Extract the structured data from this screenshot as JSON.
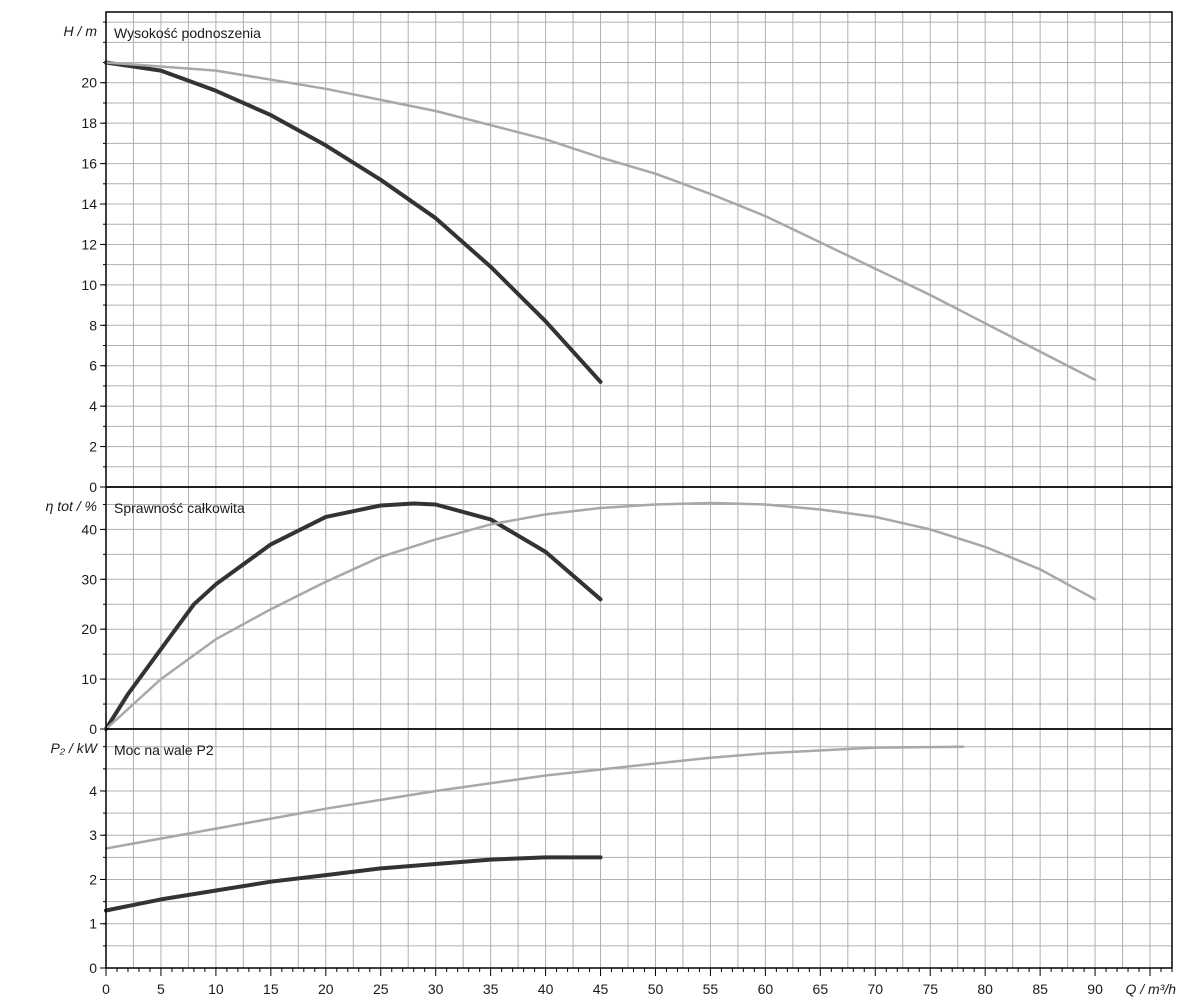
{
  "chart_data": {
    "type": "line",
    "x": {
      "label": "Q / m³/h",
      "range": [
        0,
        97
      ],
      "ticks": [
        0,
        5,
        10,
        15,
        20,
        25,
        30,
        35,
        40,
        45,
        50,
        55,
        60,
        65,
        70,
        75,
        80,
        85,
        90
      ],
      "grid": true
    },
    "colors": {
      "dark": "#333333",
      "light": "#a8a8a8",
      "grid": "#b0b0b0",
      "frame": "#000000"
    },
    "panels": [
      {
        "id": "head",
        "title": "Wysokość podnoszenia",
        "ylabel": "H / m",
        "yrange": [
          0,
          23.5
        ],
        "yticks": [
          0,
          2,
          4,
          6,
          8,
          10,
          12,
          14,
          16,
          18,
          20
        ],
        "series": [
          {
            "style": "dark",
            "points": [
              [
                0,
                21.0
              ],
              [
                5,
                20.6
              ],
              [
                10,
                19.6
              ],
              [
                15,
                18.4
              ],
              [
                20,
                16.9
              ],
              [
                25,
                15.2
              ],
              [
                30,
                13.3
              ],
              [
                35,
                10.9
              ],
              [
                40,
                8.2
              ],
              [
                45,
                5.2
              ]
            ]
          },
          {
            "style": "light",
            "points": [
              [
                0,
                21.0
              ],
              [
                10,
                20.6
              ],
              [
                20,
                19.7
              ],
              [
                30,
                18.6
              ],
              [
                40,
                17.2
              ],
              [
                45,
                16.3
              ],
              [
                50,
                15.5
              ],
              [
                55,
                14.5
              ],
              [
                60,
                13.4
              ],
              [
                65,
                12.1
              ],
              [
                70,
                10.8
              ],
              [
                75,
                9.5
              ],
              [
                80,
                8.1
              ],
              [
                85,
                6.7
              ],
              [
                90,
                5.3
              ]
            ]
          }
        ]
      },
      {
        "id": "efficiency",
        "title": "Sprawność całkowita",
        "ylabel": "η tot / %",
        "yrange": [
          0,
          48.5
        ],
        "yticks": [
          0,
          10,
          20,
          30,
          40
        ],
        "series": [
          {
            "style": "dark",
            "points": [
              [
                0,
                0
              ],
              [
                2,
                7
              ],
              [
                5,
                16
              ],
              [
                8,
                25
              ],
              [
                10,
                29
              ],
              [
                15,
                37
              ],
              [
                20,
                42.5
              ],
              [
                25,
                44.8
              ],
              [
                28,
                45.2
              ],
              [
                30,
                45
              ],
              [
                35,
                42
              ],
              [
                40,
                35.5
              ],
              [
                45,
                26
              ]
            ]
          },
          {
            "style": "light",
            "points": [
              [
                0,
                0
              ],
              [
                5,
                10
              ],
              [
                10,
                18
              ],
              [
                15,
                24
              ],
              [
                20,
                29.5
              ],
              [
                25,
                34.5
              ],
              [
                30,
                38
              ],
              [
                35,
                41
              ],
              [
                40,
                43
              ],
              [
                45,
                44.3
              ],
              [
                50,
                45
              ],
              [
                55,
                45.3
              ],
              [
                60,
                45
              ],
              [
                65,
                44
              ],
              [
                70,
                42.5
              ],
              [
                75,
                40
              ],
              [
                80,
                36.5
              ],
              [
                85,
                32
              ],
              [
                90,
                26
              ]
            ]
          }
        ]
      },
      {
        "id": "power",
        "title": "Moc na wale P2",
        "ylabel": "P₂ / kW",
        "yrange": [
          0,
          5.4
        ],
        "yticks": [
          0,
          1,
          2,
          3,
          4
        ],
        "series": [
          {
            "style": "dark",
            "points": [
              [
                0,
                1.3
              ],
              [
                5,
                1.55
              ],
              [
                10,
                1.75
              ],
              [
                15,
                1.95
              ],
              [
                20,
                2.1
              ],
              [
                25,
                2.25
              ],
              [
                30,
                2.35
              ],
              [
                35,
                2.45
              ],
              [
                40,
                2.5
              ],
              [
                45,
                2.5
              ]
            ]
          },
          {
            "style": "light",
            "points": [
              [
                0,
                2.7
              ],
              [
                10,
                3.15
              ],
              [
                20,
                3.6
              ],
              [
                30,
                4.0
              ],
              [
                40,
                4.35
              ],
              [
                50,
                4.62
              ],
              [
                55,
                4.75
              ],
              [
                60,
                4.85
              ],
              [
                70,
                4.98
              ],
              [
                78,
                5.0
              ]
            ]
          }
        ]
      }
    ]
  }
}
